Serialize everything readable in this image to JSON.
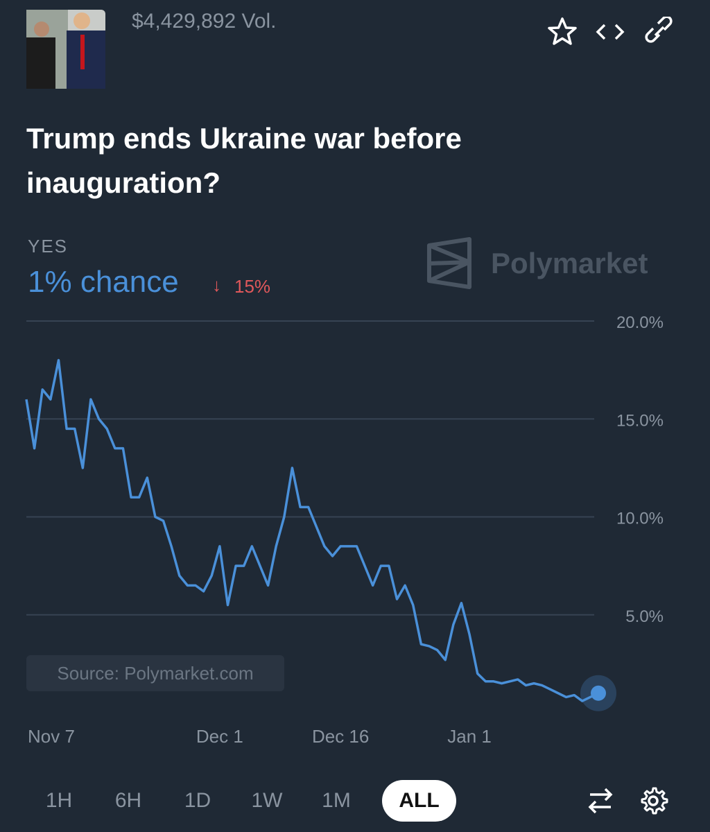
{
  "header": {
    "volume": "$4,429,892 Vol.",
    "title": "Trump ends Ukraine war before inauguration?"
  },
  "outcome": {
    "chance": "1% chance",
    "change": "15%"
  },
  "brand": "Polymarket",
  "source": "Source: Polymarket.com",
  "timeframes": [
    "1H",
    "6H",
    "1D",
    "1W",
    "1M",
    "ALL"
  ],
  "selected_timeframe": "ALL",
  "chart_data": {
    "type": "line",
    "x": [
      0,
      1,
      2,
      3,
      4,
      5,
      6,
      7,
      8,
      9,
      10,
      11,
      12,
      13,
      14,
      15,
      16,
      17,
      18,
      19,
      20,
      21,
      22,
      23,
      24,
      25,
      26,
      27,
      28,
      29,
      30,
      31,
      32,
      33,
      34,
      35,
      36,
      37,
      38,
      39,
      40,
      41,
      42,
      43,
      44,
      45,
      46,
      47,
      48,
      49,
      50,
      51,
      52,
      53,
      54,
      55,
      56,
      57,
      58,
      59,
      60,
      61,
      62,
      63,
      64,
      65,
      66,
      67,
      68,
      69,
      70,
      71
    ],
    "series": [
      {
        "name": "YES",
        "color": "#4a90d9",
        "values": [
          16.0,
          13.5,
          16.5,
          16.0,
          18.0,
          14.5,
          14.5,
          12.5,
          16.0,
          15.0,
          14.5,
          13.5,
          13.5,
          11.0,
          11.0,
          12.0,
          10.0,
          9.8,
          8.5,
          7.0,
          6.5,
          6.5,
          6.2,
          7.0,
          8.5,
          5.5,
          7.5,
          7.5,
          8.5,
          7.5,
          6.5,
          8.5,
          10.0,
          12.5,
          10.5,
          10.5,
          9.5,
          8.5,
          8.0,
          8.5,
          8.5,
          8.5,
          7.5,
          6.5,
          7.5,
          7.5,
          5.8,
          6.5,
          5.5,
          3.5,
          3.4,
          3.2,
          2.7,
          4.5,
          5.6,
          4.0,
          2.0,
          1.6,
          1.6,
          1.5,
          1.6,
          1.7,
          1.4,
          1.5,
          1.4,
          1.2,
          1.0,
          0.8,
          0.9,
          0.6,
          0.8,
          1.0
        ]
      }
    ],
    "xlim": [
      0,
      71
    ],
    "xticks": [
      {
        "value": 0,
        "label": "Nov 7"
      },
      {
        "value": 24,
        "label": "Dec 1"
      },
      {
        "value": 39,
        "label": "Dec 16"
      },
      {
        "value": 55,
        "label": "Jan 1"
      }
    ],
    "ylim": [
      0,
      20
    ],
    "yticks": [
      {
        "value": 5,
        "label": "5.0%"
      },
      {
        "value": 10,
        "label": "10.0%"
      },
      {
        "value": 15,
        "label": "15.0%"
      },
      {
        "value": 20,
        "label": "20.0%"
      }
    ],
    "grid": true
  }
}
